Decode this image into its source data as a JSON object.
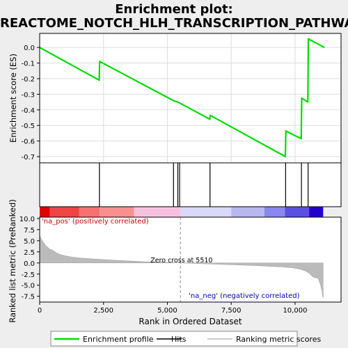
{
  "title_line1": "Enrichment plot:",
  "title_line2": "REACTOME_NOTCH_HLH_TRANSCRIPTION_PATHWAY",
  "chart_data": {
    "type": "line",
    "xlabel": "Rank in Ordered Dataset",
    "x_ticks": [
      0,
      2500,
      5000,
      7500,
      10000
    ],
    "x_tick_labels": [
      "0",
      "2,500",
      "5,000",
      "7,500",
      "10,000"
    ],
    "xlim": [
      0,
      11800
    ],
    "es_panel": {
      "ylabel": "Enrichment score (ES)",
      "ylim": [
        -0.74,
        0.09
      ],
      "y_ticks": [
        0.0,
        -0.1,
        -0.2,
        -0.3,
        -0.4,
        -0.5,
        -0.6,
        -0.7
      ],
      "y_tick_labels": [
        "0.0",
        "-0.1",
        "-0.2",
        "-0.3",
        "-0.4",
        "-0.5",
        "-0.6",
        "-0.7"
      ],
      "line_color": "#00dd00",
      "points": [
        [
          0,
          0.0
        ],
        [
          2330,
          -0.21
        ],
        [
          2350,
          -0.09
        ],
        [
          5230,
          -0.34
        ],
        [
          5400,
          -0.35
        ],
        [
          5470,
          -0.355
        ],
        [
          6660,
          -0.46
        ],
        [
          6680,
          -0.435
        ],
        [
          9620,
          -0.7
        ],
        [
          9640,
          -0.535
        ],
        [
          10240,
          -0.585
        ],
        [
          10260,
          -0.325
        ],
        [
          10500,
          -0.35
        ],
        [
          10520,
          0.055
        ],
        [
          11150,
          0.0
        ]
      ]
    },
    "hits": [
      2340,
      5240,
      5410,
      5480,
      6670,
      9630,
      10250,
      10510
    ],
    "heat_bar": {
      "segments": [
        {
          "x0": 0,
          "x1": 400,
          "color": "#e00000"
        },
        {
          "x0": 400,
          "x1": 1550,
          "color": "#f04545"
        },
        {
          "x0": 1550,
          "x1": 2350,
          "color": "#f87070"
        },
        {
          "x0": 2350,
          "x1": 3700,
          "color": "#f89090"
        },
        {
          "x0": 3700,
          "x1": 5510,
          "color": "#f8c0e0"
        },
        {
          "x0": 5510,
          "x1": 7500,
          "color": "#d8d8f8"
        },
        {
          "x0": 7500,
          "x1": 8800,
          "color": "#b8b8f0"
        },
        {
          "x0": 8800,
          "x1": 9600,
          "color": "#8888ee"
        },
        {
          "x0": 9600,
          "x1": 10550,
          "color": "#5a50e0"
        },
        {
          "x0": 10550,
          "x1": 11100,
          "color": "#2200cc"
        }
      ]
    },
    "metric_panel": {
      "ylabel": "Ranked list metric (PreRanked)",
      "ylim": [
        -8.8,
        10.3
      ],
      "y_ticks": [
        10.0,
        7.5,
        5.0,
        2.5,
        0.0,
        -2.5,
        -5.0,
        -7.5
      ],
      "y_tick_labels": [
        "10.0",
        "7.5",
        "5.0",
        "2.5",
        "0.0",
        "-2.5",
        "-5.0",
        "-7.5"
      ],
      "fill_color": "#bbbbbb",
      "curve": [
        [
          0,
          6.3
        ],
        [
          50,
          5.5
        ],
        [
          120,
          4.9
        ],
        [
          200,
          4.2
        ],
        [
          300,
          3.6
        ],
        [
          400,
          3.1
        ],
        [
          500,
          2.9
        ],
        [
          650,
          2.3
        ],
        [
          800,
          1.9
        ],
        [
          1000,
          1.6
        ],
        [
          1300,
          1.3
        ],
        [
          1600,
          1.1
        ],
        [
          2000,
          0.95
        ],
        [
          2500,
          0.75
        ],
        [
          3000,
          0.6
        ],
        [
          3500,
          0.45
        ],
        [
          4000,
          0.3
        ],
        [
          4500,
          0.2
        ],
        [
          5000,
          0.1
        ],
        [
          5510,
          0.0
        ],
        [
          6000,
          -0.1
        ],
        [
          6500,
          -0.2
        ],
        [
          7000,
          -0.3
        ],
        [
          7500,
          -0.4
        ],
        [
          8000,
          -0.5
        ],
        [
          8500,
          -0.6
        ],
        [
          9000,
          -0.75
        ],
        [
          9500,
          -0.9
        ],
        [
          9900,
          -1.1
        ],
        [
          10200,
          -1.4
        ],
        [
          10400,
          -1.8
        ],
        [
          10550,
          -2.3
        ],
        [
          10650,
          -2.9
        ],
        [
          10750,
          -3.3
        ],
        [
          10900,
          -3.4
        ],
        [
          10950,
          -4.2
        ],
        [
          11000,
          -5.0
        ],
        [
          11050,
          -6.2
        ],
        [
          11080,
          -7.5
        ],
        [
          11100,
          -7.9
        ]
      ],
      "zero_cross_label": "Zero cross at 5510",
      "zero_cross_x": 5510,
      "pos_label": "'na_pos' (positively correlated)",
      "neg_label": "'na_neg' (negatively correlated)",
      "pos_color": "#cc0000",
      "neg_color": "#0000cc"
    },
    "legend": {
      "position": "bottom",
      "items": [
        {
          "label": "Enrichment profile",
          "color": "#00dd00"
        },
        {
          "label": "Hits",
          "color": "#000000"
        },
        {
          "label": "Ranking metric scores",
          "color": "#bbbbbb"
        }
      ]
    }
  }
}
